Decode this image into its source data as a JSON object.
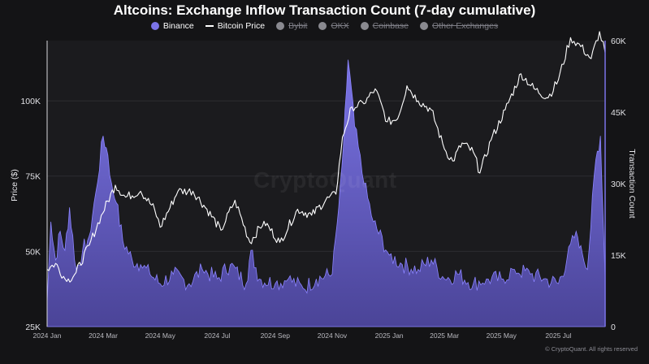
{
  "title": "Altcoins: Exchange Inflow Transaction Count (7-day cumulative)",
  "legend": [
    {
      "label": "Binance",
      "active": true,
      "color": "#7b73e8",
      "kind": "dot"
    },
    {
      "label": "Bitcoin Price",
      "active": true,
      "color": "#ffffff",
      "kind": "line"
    },
    {
      "label": "Bybit",
      "active": false,
      "color": "#8a8a90",
      "kind": "dot"
    },
    {
      "label": "OKX",
      "active": false,
      "color": "#8a8a90",
      "kind": "dot"
    },
    {
      "label": "Coinbase",
      "active": false,
      "color": "#8a8a90",
      "kind": "dot"
    },
    {
      "label": "Other Exchanges",
      "active": false,
      "color": "#8a8a90",
      "kind": "dot"
    }
  ],
  "watermark": "CryptoQuant",
  "credit": "© CryptoQuant. All rights reserved",
  "chart_data": {
    "type": "area",
    "grid": true,
    "x_tick_labels": [
      "2024 Jan",
      "2024 Mar",
      "2024 May",
      "2024 Jul",
      "2024 Sep",
      "2024 Nov",
      "2025 Jan",
      "2025 Mar",
      "2025 May",
      "2025 Jul"
    ],
    "x_start": "2024-01-01",
    "x_end": "2025-08-20",
    "left_axis": {
      "label": "Price ($)",
      "ylim": [
        25000,
        120000
      ],
      "ticks": [
        "25K",
        "50K",
        "75K",
        "100K"
      ],
      "tick_values": [
        25000,
        50000,
        75000,
        100000
      ]
    },
    "right_axis": {
      "label": "Transaction Count",
      "ylim": [
        0,
        60000
      ],
      "ticks": [
        "0",
        "15K",
        "30K",
        "45K",
        "60K"
      ],
      "tick_values": [
        0,
        15000,
        30000,
        45000,
        60000
      ]
    },
    "series": [
      {
        "name": "Binance",
        "axis": "right",
        "color": "#6b63d6",
        "x": [
          "2024-01-01",
          "2024-01-05",
          "2024-01-10",
          "2024-01-15",
          "2024-01-20",
          "2024-01-25",
          "2024-02-01",
          "2024-02-08",
          "2024-02-15",
          "2024-02-22",
          "2024-03-01",
          "2024-03-06",
          "2024-03-10",
          "2024-03-15",
          "2024-03-22",
          "2024-04-01",
          "2024-04-10",
          "2024-04-20",
          "2024-05-01",
          "2024-05-15",
          "2024-06-01",
          "2024-06-15",
          "2024-07-01",
          "2024-07-15",
          "2024-08-01",
          "2024-08-06",
          "2024-08-15",
          "2024-09-01",
          "2024-09-15",
          "2024-10-01",
          "2024-10-15",
          "2024-11-01",
          "2024-11-08",
          "2024-11-13",
          "2024-11-18",
          "2024-11-25",
          "2024-12-05",
          "2024-12-15",
          "2025-01-01",
          "2025-01-15",
          "2025-02-01",
          "2025-02-15",
          "2025-03-01",
          "2025-03-15",
          "2025-04-01",
          "2025-04-15",
          "2025-05-01",
          "2025-05-15",
          "2025-06-01",
          "2025-06-15",
          "2025-07-01",
          "2025-07-10",
          "2025-07-20",
          "2025-07-25",
          "2025-08-01",
          "2025-08-10",
          "2025-08-15",
          "2025-08-20"
        ],
        "values": [
          5000,
          22000,
          14000,
          20000,
          16000,
          25000,
          12000,
          16000,
          19000,
          28000,
          40000,
          36000,
          30000,
          26000,
          18000,
          14000,
          13000,
          11000,
          9000,
          11000,
          9000,
          12000,
          10000,
          13000,
          9000,
          16000,
          10000,
          9000,
          10000,
          8000,
          10000,
          11000,
          25000,
          38000,
          56000,
          42000,
          30000,
          22000,
          15000,
          13000,
          12000,
          14000,
          10000,
          11000,
          9000,
          10000,
          10000,
          12000,
          11000,
          10000,
          9000,
          14000,
          20000,
          17000,
          12000,
          35000,
          40000,
          10000
        ]
      },
      {
        "name": "Bitcoin Price",
        "axis": "left",
        "color": "#ffffff",
        "x": [
          "2024-01-01",
          "2024-01-10",
          "2024-01-22",
          "2024-02-01",
          "2024-02-15",
          "2024-02-28",
          "2024-03-14",
          "2024-03-25",
          "2024-04-10",
          "2024-04-25",
          "2024-05-01",
          "2024-05-20",
          "2024-06-05",
          "2024-06-20",
          "2024-07-05",
          "2024-07-20",
          "2024-08-05",
          "2024-08-20",
          "2024-09-06",
          "2024-09-25",
          "2024-10-10",
          "2024-10-25",
          "2024-11-05",
          "2024-11-12",
          "2024-11-22",
          "2024-12-05",
          "2024-12-17",
          "2024-12-30",
          "2025-01-10",
          "2025-01-20",
          "2025-02-01",
          "2025-02-15",
          "2025-03-01",
          "2025-03-10",
          "2025-03-20",
          "2025-04-01",
          "2025-04-08",
          "2025-04-20",
          "2025-05-05",
          "2025-05-22",
          "2025-06-05",
          "2025-06-20",
          "2025-07-01",
          "2025-07-14",
          "2025-07-25",
          "2025-08-05",
          "2025-08-14",
          "2025-08-20"
        ],
        "values": [
          44000,
          46000,
          40000,
          43000,
          52000,
          62000,
          72000,
          68000,
          70000,
          64000,
          58000,
          70000,
          70000,
          64000,
          57000,
          67000,
          53000,
          60000,
          53000,
          64000,
          62000,
          67000,
          69000,
          88000,
          98000,
          99000,
          104000,
          93000,
          94000,
          105000,
          100000,
          97000,
          84000,
          80000,
          86000,
          83000,
          76000,
          87000,
          97000,
          109000,
          104000,
          101000,
          107000,
          121000,
          118000,
          114000,
          123000,
          116000
        ]
      }
    ]
  }
}
